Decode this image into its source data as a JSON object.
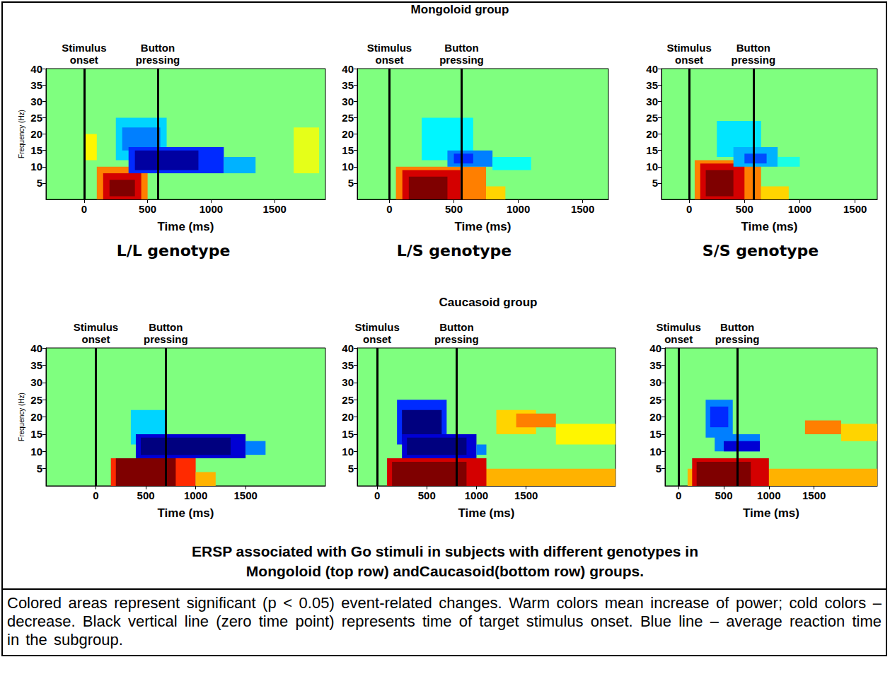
{
  "figure": {
    "row_titles": [
      "Mongoloid group",
      "Caucasoid group"
    ],
    "column_titles": [
      "L/L genotype",
      "L/S genotype",
      "S/S genotype"
    ],
    "caption": [
      "ERSP associated with Go stimuli in subjects with different genotypes in",
      "Mongoloid (top row) andCaucasoid(bottom row) groups."
    ],
    "note": "Colored areas represent significant (p < 0.05) event-related changes. Warm colors mean increase of power; cold colors – decrease. Black vertical line (zero time point) represents time of target stimulus onset. Blue line – average reaction time in the subgroup."
  },
  "chart_data": [
    {
      "type": "heatmap",
      "x_label": "Time (ms)",
      "y_label": "Frequency (Hz)",
      "xlim": [
        -300,
        1900
      ],
      "xticks": [
        0,
        500,
        1000,
        1500
      ],
      "ylim": [
        0,
        40
      ],
      "yticks": [
        5,
        10,
        15,
        20,
        25,
        30,
        35,
        40
      ],
      "grid": false,
      "annotations": [
        {
          "text": "Stimulus onset",
          "x": 0
        },
        {
          "text": "Button pressing",
          "x": 580
        }
      ],
      "value_range": [
        -3,
        3
      ],
      "cells": [
        [
          0,
          100,
          12,
          20,
          0.8
        ],
        [
          100,
          500,
          0,
          10,
          1.5
        ],
        [
          150,
          450,
          0,
          8,
          2.5
        ],
        [
          200,
          400,
          1,
          6,
          3
        ],
        [
          250,
          650,
          12,
          25,
          -1
        ],
        [
          300,
          600,
          15,
          22,
          -1.5
        ],
        [
          350,
          1100,
          8,
          16,
          -2
        ],
        [
          1100,
          1350,
          8,
          13,
          -1.2
        ],
        [
          400,
          900,
          9,
          15,
          -2.8
        ],
        [
          1650,
          1850,
          8,
          22,
          0.6
        ]
      ]
    },
    {
      "type": "heatmap",
      "x_label": "Time (ms)",
      "xlim": [
        -250,
        1700
      ],
      "xticks": [
        0,
        500,
        1000,
        1500
      ],
      "ylim": [
        0,
        40
      ],
      "yticks": [
        5,
        10,
        15,
        20,
        25,
        30,
        35,
        40
      ],
      "grid": false,
      "annotations": [
        {
          "text": "Stimulus onset",
          "x": 0
        },
        {
          "text": "Button pressing",
          "x": 560
        }
      ],
      "value_range": [
        -3,
        3
      ],
      "cells": [
        [
          50,
          750,
          0,
          10,
          1.5
        ],
        [
          100,
          550,
          0,
          9,
          2.5
        ],
        [
          150,
          450,
          0,
          7,
          3
        ],
        [
          750,
          900,
          0,
          4,
          1
        ],
        [
          250,
          650,
          12,
          25,
          -0.8
        ],
        [
          450,
          800,
          10,
          15,
          -1.5
        ],
        [
          500,
          650,
          11,
          14,
          -2
        ],
        [
          800,
          1100,
          9,
          13,
          -0.7
        ]
      ]
    },
    {
      "type": "heatmap",
      "x_label": "Time (ms)",
      "xlim": [
        -250,
        1700
      ],
      "xticks": [
        0,
        500,
        1000,
        1500
      ],
      "ylim": [
        0,
        40
      ],
      "yticks": [
        5,
        10,
        15,
        20,
        25,
        30,
        35,
        40
      ],
      "grid": false,
      "annotations": [
        {
          "text": "Stimulus onset",
          "x": 0
        },
        {
          "text": "Button pressing",
          "x": 580
        }
      ],
      "value_range": [
        -3,
        3
      ],
      "cells": [
        [
          50,
          650,
          0,
          12,
          1.5
        ],
        [
          100,
          500,
          0,
          11,
          2.5
        ],
        [
          150,
          400,
          1,
          9,
          3
        ],
        [
          650,
          900,
          0,
          4,
          1
        ],
        [
          250,
          650,
          13,
          24,
          -0.9
        ],
        [
          400,
          800,
          10,
          16,
          -1.2
        ],
        [
          500,
          700,
          11,
          14,
          -1.8
        ],
        [
          800,
          1000,
          10,
          13,
          -0.6
        ]
      ]
    },
    {
      "type": "heatmap",
      "x_label": "Time (ms)",
      "y_label": "Frequency (Hz)",
      "xlim": [
        -500,
        2300
      ],
      "xticks": [
        0,
        500,
        1000,
        1500
      ],
      "ylim": [
        0,
        40
      ],
      "yticks": [
        5,
        10,
        15,
        20,
        25,
        30,
        35,
        40
      ],
      "grid": false,
      "annotations": [
        {
          "text": "Stimulus onset",
          "x": 0
        },
        {
          "text": "Button pressing",
          "x": 700
        }
      ],
      "value_range": [
        -3,
        3
      ],
      "cells": [
        [
          150,
          1000,
          0,
          8,
          2
        ],
        [
          200,
          800,
          0,
          8,
          3
        ],
        [
          1000,
          1200,
          0,
          4,
          1.2
        ],
        [
          350,
          700,
          12,
          22,
          -1
        ],
        [
          400,
          1500,
          8,
          15,
          -2.5
        ],
        [
          450,
          1350,
          9,
          14,
          -3
        ],
        [
          1500,
          1700,
          9,
          13,
          -1.5
        ]
      ]
    },
    {
      "type": "heatmap",
      "x_label": "Time (ms)",
      "xlim": [
        -200,
        2400
      ],
      "xticks": [
        0,
        500,
        1000,
        1500
      ],
      "ylim": [
        0,
        40
      ],
      "yticks": [
        5,
        10,
        15,
        20,
        25,
        30,
        35,
        40
      ],
      "grid": false,
      "annotations": [
        {
          "text": "Stimulus onset",
          "x": 0
        },
        {
          "text": "Button pressing",
          "x": 800
        }
      ],
      "value_range": [
        -3,
        3
      ],
      "cells": [
        [
          100,
          2400,
          0,
          5,
          1.2
        ],
        [
          100,
          1100,
          0,
          8,
          2.5
        ],
        [
          150,
          900,
          0,
          7,
          3
        ],
        [
          200,
          700,
          12,
          25,
          -2
        ],
        [
          250,
          650,
          13,
          22,
          -3
        ],
        [
          250,
          1000,
          8,
          15,
          -2.5
        ],
        [
          300,
          900,
          9,
          14,
          -3
        ],
        [
          1000,
          1100,
          9,
          12,
          -1.5
        ],
        [
          1200,
          1600,
          15,
          22,
          1
        ],
        [
          1400,
          1800,
          17,
          21,
          1.5
        ],
        [
          1800,
          2400,
          12,
          18,
          0.8
        ]
      ]
    },
    {
      "type": "heatmap",
      "x_label": "Time (ms)",
      "xlim": [
        -150,
        2200
      ],
      "xticks": [
        0,
        500,
        1000,
        1500
      ],
      "ylim": [
        0,
        40
      ],
      "yticks": [
        5,
        10,
        15,
        20,
        25,
        30,
        35,
        40
      ],
      "grid": false,
      "annotations": [
        {
          "text": "Stimulus onset",
          "x": 0
        },
        {
          "text": "Button pressing",
          "x": 650
        }
      ],
      "value_range": [
        -3,
        3
      ],
      "cells": [
        [
          100,
          2200,
          0,
          5,
          1.2
        ],
        [
          150,
          1000,
          0,
          8,
          2.5
        ],
        [
          200,
          800,
          0,
          7,
          3
        ],
        [
          300,
          600,
          14,
          25,
          -1.5
        ],
        [
          350,
          550,
          17,
          23,
          -2
        ],
        [
          400,
          900,
          10,
          15,
          -1.5
        ],
        [
          500,
          900,
          10,
          13,
          -2.5
        ],
        [
          1400,
          1800,
          15,
          19,
          1.5
        ],
        [
          1800,
          2200,
          13,
          18,
          1
        ]
      ]
    }
  ]
}
